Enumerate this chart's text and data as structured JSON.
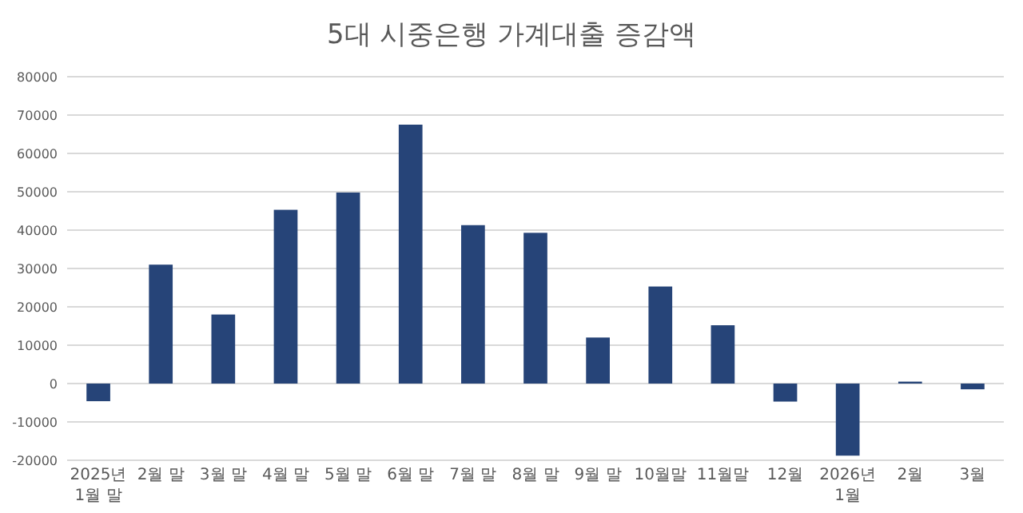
{
  "chart_data": {
    "type": "bar",
    "title": "5대 시중은행 가계대출 증감액",
    "categories": [
      "2025년 1월 말",
      "2월 말",
      "3월 말",
      "4월 말",
      "5월 말",
      "6월 말",
      "7월 말",
      "8월 말",
      "9월 말",
      "10월말",
      "11월말",
      "12월",
      "2026년 1월",
      "2월",
      "3월"
    ],
    "values": [
      -4600,
      31000,
      18000,
      45300,
      49800,
      67500,
      41300,
      39300,
      12000,
      25300,
      15200,
      -4700,
      -18800,
      500,
      -1500
    ],
    "color": "#264478",
    "ylim": [
      -20000,
      80000
    ],
    "yticks": [
      -20000,
      -10000,
      0,
      10000,
      20000,
      30000,
      40000,
      50000,
      60000,
      70000,
      80000
    ],
    "grid": "y"
  }
}
